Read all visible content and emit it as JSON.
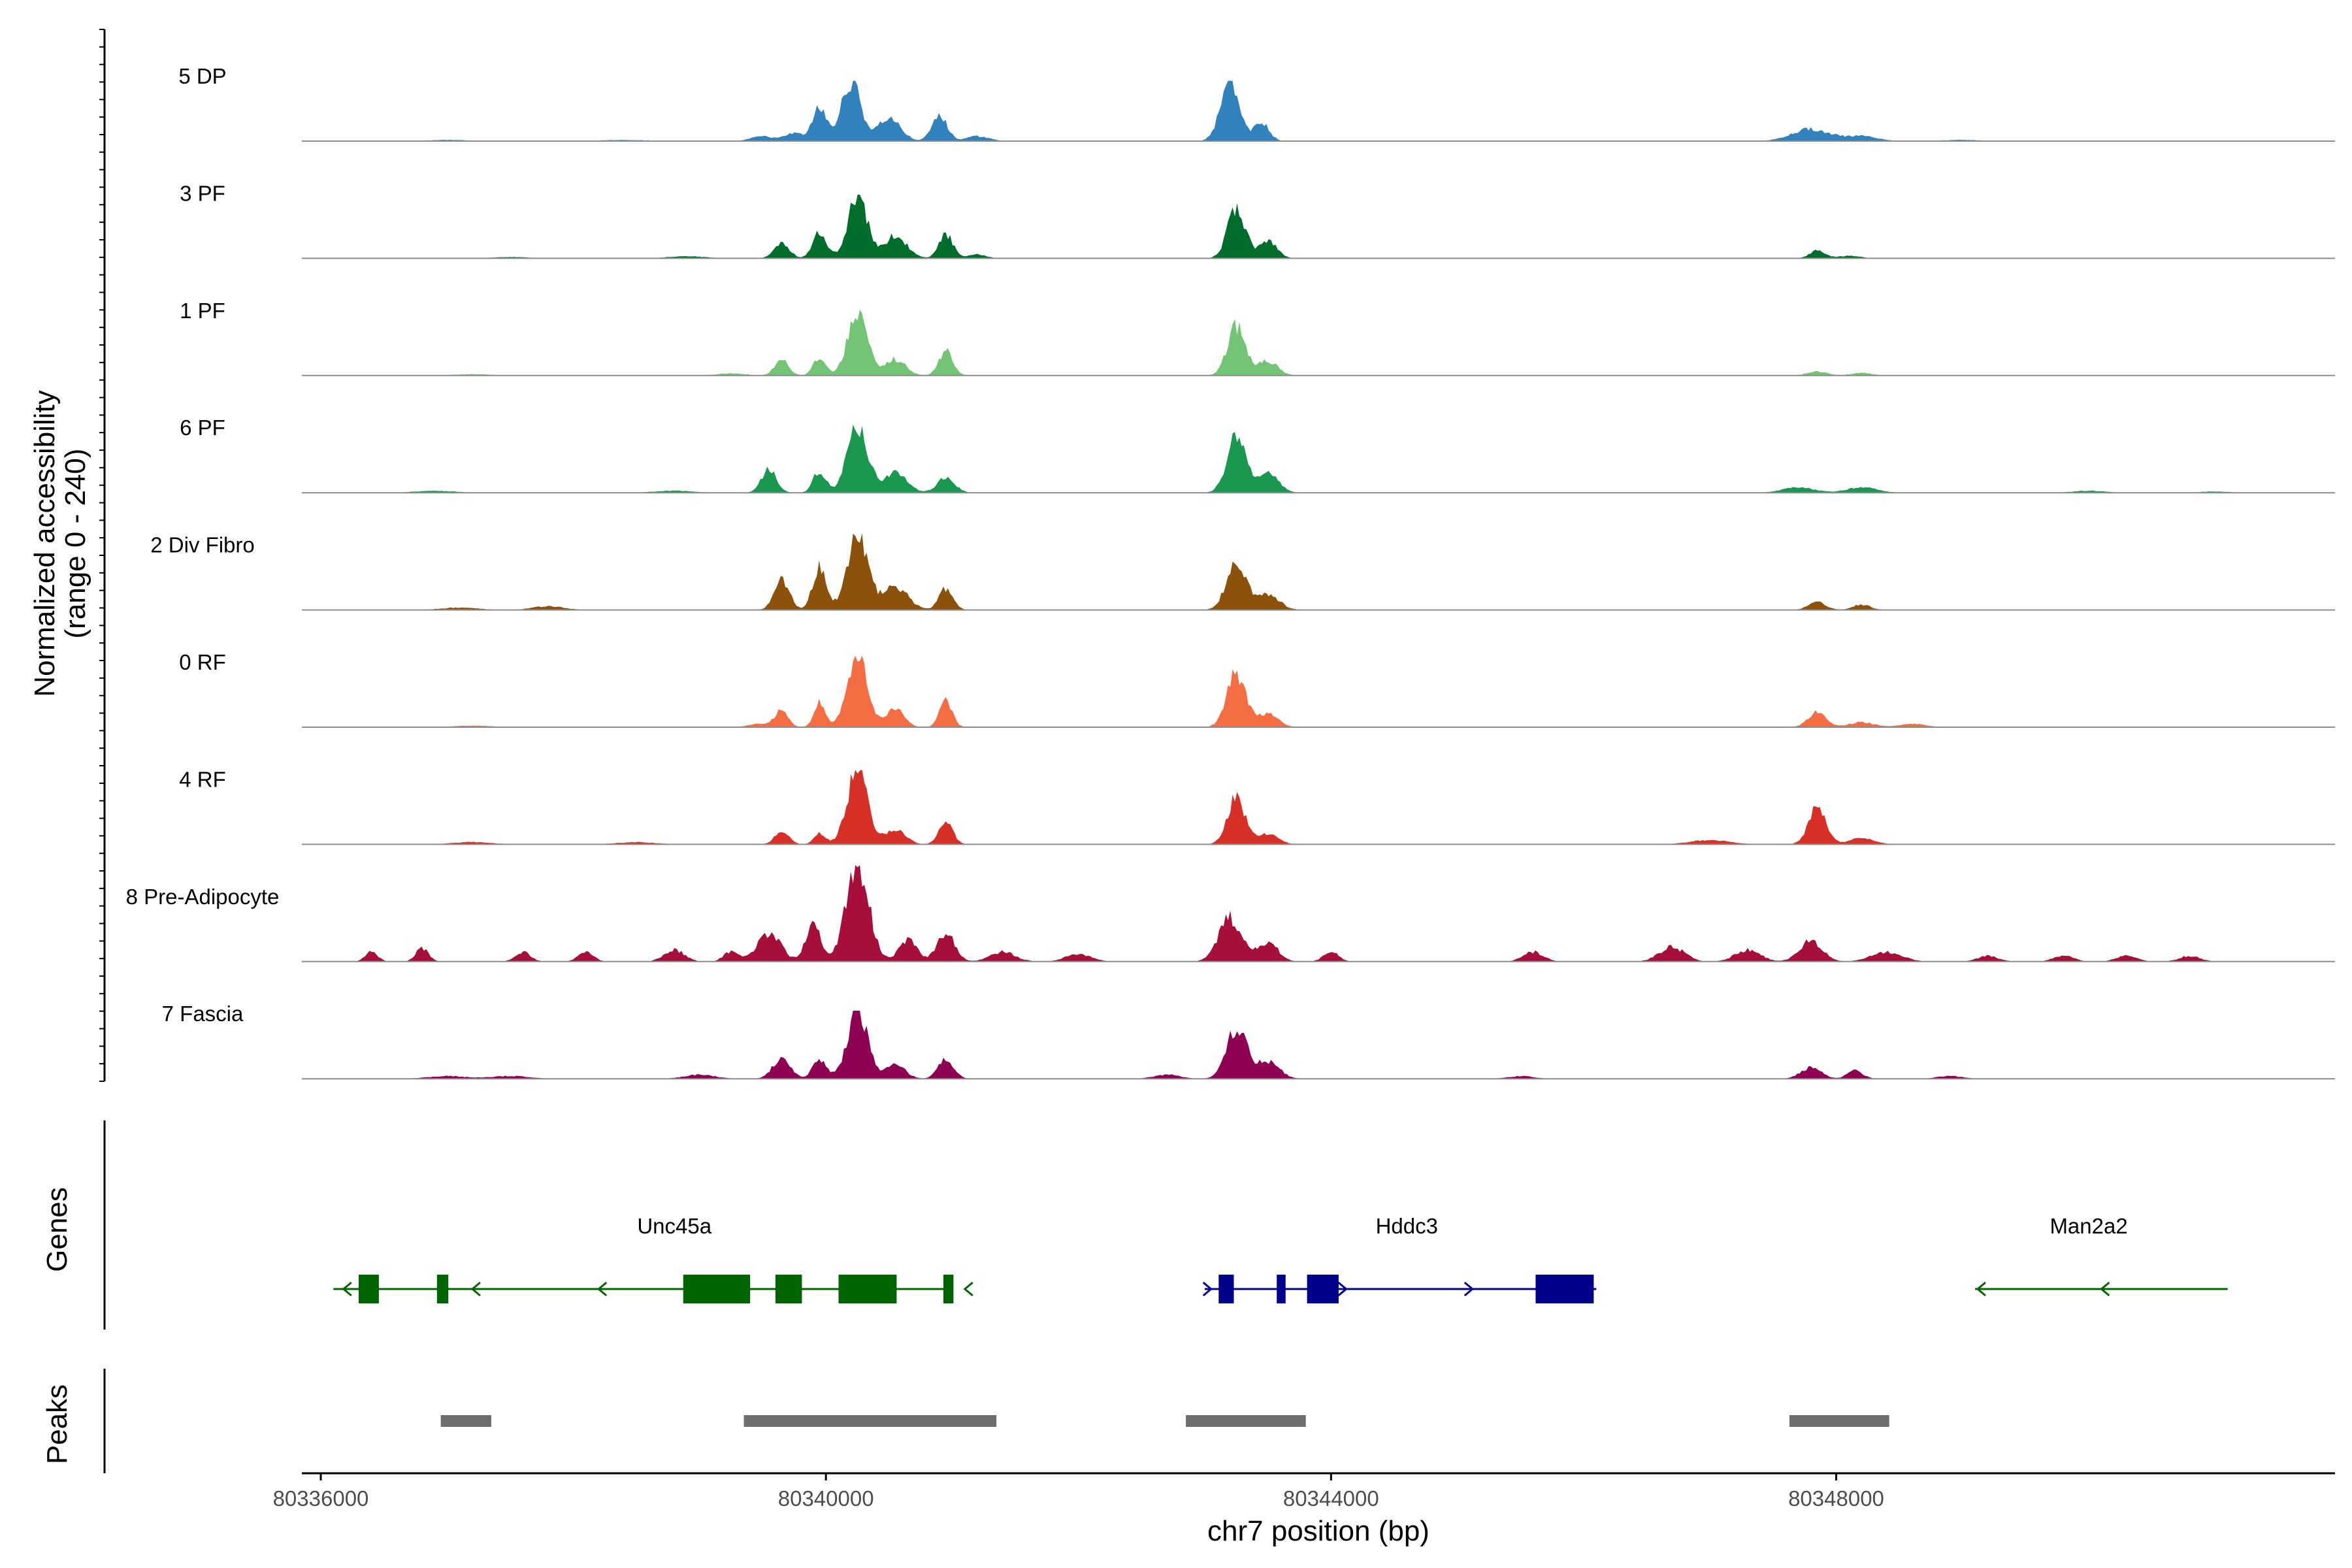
{
  "chart_data": {
    "type": "area",
    "chromosome": "chr7",
    "xlabel": "chr7 position (bp)",
    "ylabel": "Normalized accessibility",
    "ylabel_range": "(range 0 - 240)",
    "ylim": [
      0,
      240
    ],
    "xlim": [
      80335850,
      80351950
    ],
    "x_ticks": [
      80336000,
      80340000,
      80344000,
      80348000
    ],
    "x_tick_labels": [
      "80336000",
      "80340000",
      "80344000",
      "80348000"
    ],
    "tracks": [
      {
        "name": "5 DP",
        "color": "#3182bd",
        "max": 0.55,
        "peaks": [
          [
            80337000,
            0.02,
            150
          ],
          [
            80338400,
            0.02,
            180
          ],
          [
            80339500,
            0.08,
            90
          ],
          [
            80339750,
            0.13,
            70
          ],
          [
            80339950,
            0.55,
            55
          ],
          [
            80340200,
            1.0,
            75
          ],
          [
            80340500,
            0.38,
            90
          ],
          [
            80340900,
            0.42,
            60
          ],
          [
            80341200,
            0.08,
            90
          ],
          [
            80343200,
            0.95,
            75
          ],
          [
            80343450,
            0.3,
            60
          ],
          [
            80347800,
            0.2,
            150
          ],
          [
            80348200,
            0.08,
            120
          ],
          [
            80349000,
            0.02,
            150
          ]
        ]
      },
      {
        "name": "3 PF",
        "color": "#006d2c",
        "max": 0.58,
        "peaks": [
          [
            80337500,
            0.02,
            150
          ],
          [
            80338900,
            0.03,
            150
          ],
          [
            80339650,
            0.25,
            60
          ],
          [
            80339950,
            0.4,
            55
          ],
          [
            80340250,
            1.0,
            75
          ],
          [
            80340550,
            0.35,
            90
          ],
          [
            80340950,
            0.38,
            55
          ],
          [
            80341200,
            0.06,
            70
          ],
          [
            80343250,
            0.78,
            70
          ],
          [
            80343500,
            0.28,
            70
          ],
          [
            80347850,
            0.12,
            60
          ],
          [
            80348100,
            0.04,
            90
          ]
        ]
      },
      {
        "name": "1 PF",
        "color": "#74c476",
        "max": 0.6,
        "peaks": [
          [
            80337200,
            0.02,
            150
          ],
          [
            80339250,
            0.03,
            120
          ],
          [
            80339650,
            0.25,
            55
          ],
          [
            80339950,
            0.28,
            50
          ],
          [
            80340250,
            1.0,
            75
          ],
          [
            80340550,
            0.25,
            80
          ],
          [
            80340950,
            0.38,
            55
          ],
          [
            80343250,
            0.75,
            70
          ],
          [
            80343500,
            0.22,
            80
          ],
          [
            80347850,
            0.06,
            80
          ],
          [
            80348200,
            0.04,
            80
          ]
        ]
      },
      {
        "name": "6 PF",
        "color": "#1a9850",
        "max": 0.62,
        "peaks": [
          [
            80336900,
            0.03,
            150
          ],
          [
            80338800,
            0.03,
            150
          ],
          [
            80339550,
            0.35,
            60
          ],
          [
            80339950,
            0.32,
            50
          ],
          [
            80340250,
            1.0,
            80
          ],
          [
            80340550,
            0.3,
            90
          ],
          [
            80340950,
            0.22,
            70
          ],
          [
            80343250,
            0.82,
            75
          ],
          [
            80343500,
            0.3,
            80
          ],
          [
            80347700,
            0.08,
            120
          ],
          [
            80348200,
            0.08,
            120
          ],
          [
            80350000,
            0.03,
            120
          ],
          [
            80351000,
            0.02,
            100
          ]
        ]
      },
      {
        "name": "2 Div Fibro",
        "color": "#8c510a",
        "max": 0.7,
        "peaks": [
          [
            80337100,
            0.03,
            150
          ],
          [
            80337800,
            0.05,
            120
          ],
          [
            80339650,
            0.4,
            60
          ],
          [
            80339950,
            0.55,
            55
          ],
          [
            80340250,
            1.0,
            80
          ],
          [
            80340550,
            0.3,
            100
          ],
          [
            80340950,
            0.28,
            55
          ],
          [
            80343250,
            0.58,
            80
          ],
          [
            80343500,
            0.2,
            90
          ],
          [
            80347850,
            0.1,
            70
          ],
          [
            80348200,
            0.07,
            70
          ]
        ]
      },
      {
        "name": "0 RF",
        "color": "#f46d43",
        "max": 0.65,
        "peaks": [
          [
            80337200,
            0.02,
            150
          ],
          [
            80339500,
            0.05,
            100
          ],
          [
            80339650,
            0.22,
            50
          ],
          [
            80339950,
            0.35,
            45
          ],
          [
            80340250,
            1.0,
            80
          ],
          [
            80340550,
            0.25,
            70
          ],
          [
            80340950,
            0.38,
            50
          ],
          [
            80343250,
            0.75,
            75
          ],
          [
            80343500,
            0.18,
            80
          ],
          [
            80347850,
            0.22,
            70
          ],
          [
            80348200,
            0.07,
            100
          ],
          [
            80348600,
            0.05,
            100
          ]
        ]
      },
      {
        "name": "4 RF",
        "color": "#d73027",
        "max": 0.68,
        "peaks": [
          [
            80337200,
            0.03,
            150
          ],
          [
            80338500,
            0.03,
            150
          ],
          [
            80339650,
            0.18,
            55
          ],
          [
            80339950,
            0.15,
            45
          ],
          [
            80340250,
            1.0,
            80
          ],
          [
            80340550,
            0.2,
            80
          ],
          [
            80340950,
            0.3,
            55
          ],
          [
            80343250,
            0.62,
            70
          ],
          [
            80343500,
            0.15,
            80
          ],
          [
            80347000,
            0.06,
            150
          ],
          [
            80347850,
            0.48,
            70
          ],
          [
            80348200,
            0.08,
            100
          ]
        ]
      },
      {
        "name": "8 Pre-Adipocyte",
        "color": "#a50f3a",
        "max": 0.88,
        "peaks": [
          [
            80336400,
            0.1,
            50
          ],
          [
            80336800,
            0.14,
            50
          ],
          [
            80337600,
            0.1,
            60
          ],
          [
            80338100,
            0.1,
            60
          ],
          [
            80338800,
            0.12,
            80
          ],
          [
            80339250,
            0.1,
            60
          ],
          [
            80339550,
            0.3,
            90
          ],
          [
            80339900,
            0.4,
            60
          ],
          [
            80340250,
            1.0,
            90
          ],
          [
            80340650,
            0.22,
            70
          ],
          [
            80340950,
            0.3,
            70
          ],
          [
            80341400,
            0.1,
            100
          ],
          [
            80342000,
            0.08,
            100
          ],
          [
            80343200,
            0.45,
            90
          ],
          [
            80343500,
            0.2,
            80
          ],
          [
            80344000,
            0.1,
            60
          ],
          [
            80345600,
            0.1,
            80
          ],
          [
            80346700,
            0.15,
            100
          ],
          [
            80347300,
            0.12,
            100
          ],
          [
            80347800,
            0.22,
            90
          ],
          [
            80348400,
            0.1,
            120
          ],
          [
            80349200,
            0.06,
            80
          ],
          [
            80349800,
            0.06,
            80
          ],
          [
            80350300,
            0.06,
            80
          ],
          [
            80350800,
            0.06,
            80
          ]
        ]
      },
      {
        "name": "7 Fascia",
        "color": "#8e0152",
        "max": 0.62,
        "peaks": [
          [
            80337000,
            0.04,
            150
          ],
          [
            80337500,
            0.04,
            150
          ],
          [
            80339000,
            0.06,
            120
          ],
          [
            80339650,
            0.3,
            70
          ],
          [
            80339950,
            0.28,
            55
          ],
          [
            80340250,
            1.0,
            80
          ],
          [
            80340550,
            0.2,
            80
          ],
          [
            80340950,
            0.3,
            60
          ],
          [
            80342700,
            0.06,
            100
          ],
          [
            80343250,
            0.75,
            80
          ],
          [
            80343500,
            0.25,
            90
          ],
          [
            80345500,
            0.04,
            100
          ],
          [
            80347800,
            0.17,
            80
          ],
          [
            80348150,
            0.12,
            60
          ],
          [
            80348900,
            0.04,
            100
          ]
        ]
      }
    ],
    "gene_track_label": "Genes",
    "genes": [
      {
        "name": "Unc45a",
        "strand": "-",
        "start": 80336100,
        "end": 80341000,
        "label_pos": 80338800,
        "color": "#006400",
        "exons": [
          [
            80336300,
            80336460
          ],
          [
            80336920,
            80337010
          ],
          [
            80338870,
            80339400
          ],
          [
            80339600,
            80339810
          ],
          [
            80340100,
            80340560
          ],
          [
            80340930,
            80341010
          ]
        ],
        "arrows": [
          80336180,
          80337200,
          80338200,
          80341100
        ]
      },
      {
        "name": "Hddc3",
        "strand": "+",
        "start": 80343000,
        "end": 80346100,
        "label_pos": 80344600,
        "color": "#00008b",
        "exons": [
          [
            80343110,
            80343230
          ],
          [
            80343570,
            80343640
          ],
          [
            80343810,
            80344060
          ],
          [
            80345620,
            80346080
          ]
        ],
        "arrows": [
          80343050,
          80344120,
          80345120
        ]
      },
      {
        "name": "Man2a2",
        "strand": "-",
        "start": 80349100,
        "end": 80351100,
        "label_pos": 80350000,
        "color": "#006400",
        "exons": [],
        "arrows": [
          80349120,
          80350100
        ]
      }
    ],
    "peak_track_label": "Peaks",
    "peak_regions": [
      [
        80336950,
        80337350
      ],
      [
        80339350,
        80341350
      ],
      [
        80342850,
        80343800
      ],
      [
        80347630,
        80348420
      ]
    ]
  }
}
